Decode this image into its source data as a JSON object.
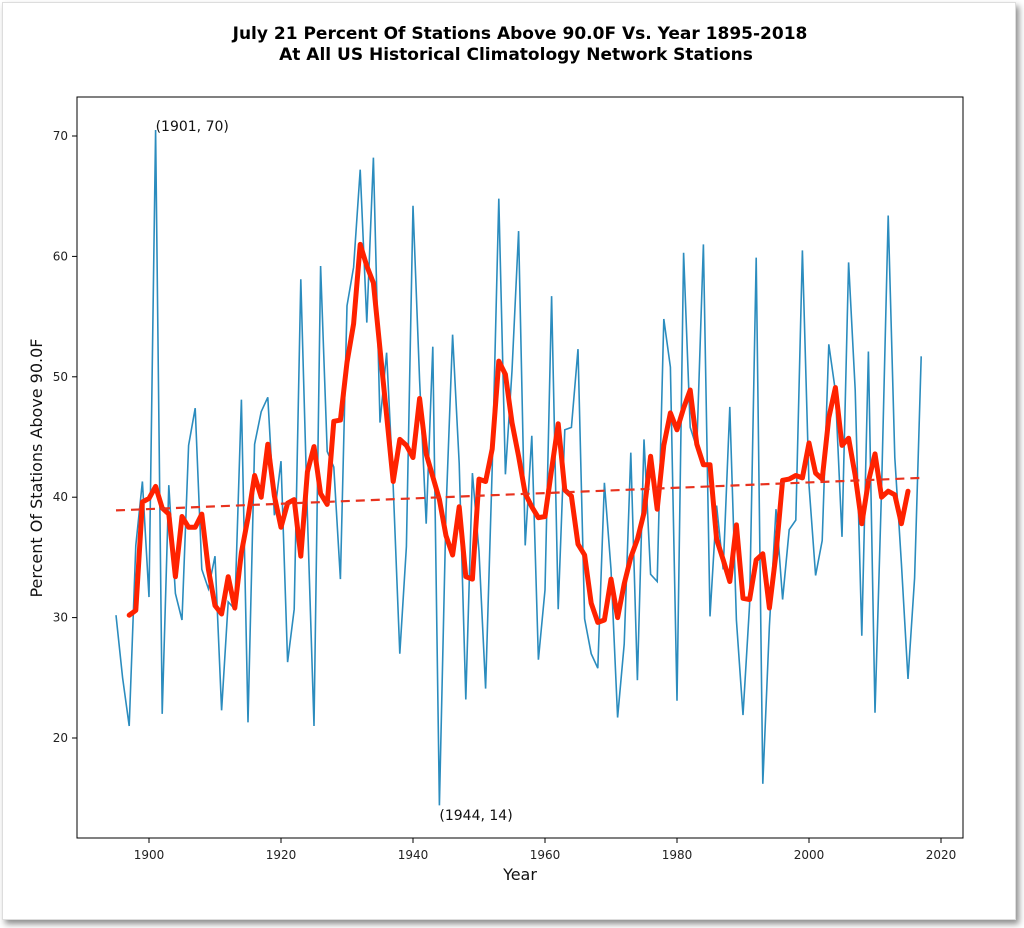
{
  "chart_data": {
    "type": "line",
    "title": "July 21 Percent Of Stations Above 90.0F Vs. Year 1895-2018",
    "subtitle": "At All US Historical Climatology Network Stations",
    "xlabel": "Year",
    "ylabel": "Percent Of Stations Above 90.0F",
    "xlim": [
      1889,
      2023
    ],
    "ylim": [
      11,
      73
    ],
    "xticks": [
      1900,
      1920,
      1940,
      1960,
      1980,
      2000,
      2020
    ],
    "yticks": [
      20,
      30,
      40,
      50,
      60,
      70
    ],
    "grid": false,
    "colors": {
      "annual": "#2b8cbe",
      "smoothed": "#ff2200",
      "trend": "#e8321e"
    },
    "annotations": [
      {
        "label": "(1901, 70)",
        "x": 1901,
        "y": 70
      },
      {
        "label": "(1944, 14)",
        "x": 1944,
        "y": 14
      }
    ],
    "series": [
      {
        "name": "annual",
        "x": [
          1895,
          1896,
          1897,
          1898,
          1899,
          1900,
          1901,
          1902,
          1903,
          1904,
          1905,
          1906,
          1907,
          1908,
          1909,
          1910,
          1911,
          1912,
          1913,
          1914,
          1915,
          1916,
          1917,
          1918,
          1919,
          1920,
          1921,
          1922,
          1923,
          1924,
          1925,
          1926,
          1927,
          1928,
          1929,
          1930,
          1931,
          1932,
          1933,
          1934,
          1935,
          1936,
          1937,
          1938,
          1939,
          1940,
          1941,
          1942,
          1943,
          1944,
          1945,
          1946,
          1947,
          1948,
          1949,
          1950,
          1951,
          1952,
          1953,
          1954,
          1955,
          1956,
          1957,
          1958,
          1959,
          1960,
          1961,
          1962,
          1963,
          1964,
          1965,
          1966,
          1967,
          1968,
          1969,
          1970,
          1971,
          1972,
          1973,
          1974,
          1975,
          1976,
          1977,
          1978,
          1979,
          1980,
          1981,
          1982,
          1983,
          1984,
          1985,
          1986,
          1987,
          1988,
          1989,
          1990,
          1991,
          1992,
          1993,
          1994,
          1995,
          1996,
          1997,
          1998,
          1999,
          2000,
          2001,
          2002,
          2003,
          2004,
          2005,
          2006,
          2007,
          2008,
          2009,
          2010,
          2011,
          2012,
          2013,
          2014,
          2015,
          2016,
          2017
        ],
        "values": [
          30.2,
          25,
          21,
          36,
          41.3,
          31.7,
          70.5,
          22,
          41,
          32,
          29.8,
          44.3,
          47.4,
          34,
          32.4,
          35.1,
          22.3,
          31.3,
          30.7,
          48.1,
          21.3,
          44.4,
          47.1,
          48.3,
          38.5,
          43,
          26.3,
          30.7,
          58.1,
          38.5,
          21,
          59.2,
          43.8,
          42.5,
          33.2,
          55.9,
          59.1,
          67.2,
          54.5,
          68.2,
          46.2,
          52,
          40.9,
          27,
          35.9,
          64.2,
          49.7,
          37.8,
          52.5,
          14.4,
          38.8,
          53.5,
          42.8,
          23.2,
          42,
          35.5,
          24.1,
          42.4,
          64.8,
          41.9,
          50.5,
          62.1,
          36,
          45.1,
          26.5,
          32.3,
          56.7,
          30.7,
          45.6,
          45.8,
          52.3,
          29.9,
          27,
          25.8,
          41.2,
          34,
          21.7,
          27.8,
          43.7,
          24.8,
          44.8,
          33.6,
          33,
          54.8,
          50.8,
          23.1,
          60.3,
          45.8,
          44.1,
          61,
          30.1,
          39.3,
          34,
          47.5,
          29.8,
          21.9,
          31.1,
          59.9,
          16.2,
          29.3,
          39,
          31.5,
          37.3,
          38.1,
          60.5,
          41,
          33.5,
          36.4,
          52.7,
          48.8,
          36.7,
          59.5,
          48.9,
          28.5,
          52.1,
          22.1,
          40.8,
          63.4,
          43.3,
          34.5,
          24.9,
          33.3,
          51.7
        ]
      },
      {
        "name": "smoothed",
        "x": [
          1897,
          1898,
          1899,
          1900,
          1901,
          1902,
          1903,
          1904,
          1905,
          1906,
          1907,
          1908,
          1909,
          1910,
          1911,
          1912,
          1913,
          1914,
          1915,
          1916,
          1917,
          1918,
          1919,
          1920,
          1921,
          1922,
          1923,
          1924,
          1925,
          1926,
          1927,
          1928,
          1929,
          1930,
          1931,
          1932,
          1933,
          1934,
          1935,
          1936,
          1937,
          1938,
          1939,
          1940,
          1941,
          1942,
          1943,
          1944,
          1945,
          1946,
          1947,
          1948,
          1949,
          1950,
          1951,
          1952,
          1953,
          1954,
          1955,
          1956,
          1957,
          1958,
          1959,
          1960,
          1961,
          1962,
          1963,
          1964,
          1965,
          1966,
          1967,
          1968,
          1969,
          1970,
          1971,
          1972,
          1973,
          1974,
          1975,
          1976,
          1977,
          1978,
          1979,
          1980,
          1981,
          1982,
          1983,
          1984,
          1985,
          1986,
          1987,
          1988,
          1989,
          1990,
          1991,
          1992,
          1993,
          1994,
          1995,
          1996,
          1997,
          1998,
          1999,
          2000,
          2001,
          2002,
          2003,
          2004,
          2005,
          2006,
          2007,
          2008,
          2009,
          2010,
          2011,
          2012,
          2013,
          2014,
          2015
        ],
        "values": [
          30.2,
          30.6,
          39.6,
          39.9,
          40.9,
          39.1,
          38.6,
          33.4,
          38.4,
          37.5,
          37.5,
          38.6,
          34,
          31,
          30.3,
          33.4,
          30.8,
          35.4,
          38.3,
          41.8,
          40,
          44.4,
          40.1,
          37.5,
          39.5,
          39.8,
          35.1,
          42.1,
          44.2,
          40.3,
          39.4,
          46.3,
          46.4,
          51.2,
          54.4,
          61,
          59.2,
          57.8,
          52.3,
          46.8,
          41.3,
          44.8,
          44.3,
          43.3,
          48.2,
          43.6,
          41.7,
          39.8,
          36.8,
          35.2,
          39.2,
          33.4,
          33.2,
          41.5,
          41.3,
          44,
          51.3,
          50.2,
          46.2,
          43.4,
          40.3,
          39.2,
          38.3,
          38.4,
          42.3,
          46.1,
          40.6,
          40.1,
          36.1,
          35.2,
          31.2,
          29.6,
          29.8,
          33.2,
          30,
          32.8,
          35,
          36.5,
          38.7,
          43.4,
          39,
          44.3,
          47,
          45.6,
          47.4,
          48.9,
          44.4,
          42.7,
          42.7,
          36.5,
          34.8,
          33,
          37.7,
          31.6,
          31.5,
          34.8,
          35.3,
          30.8,
          35.3,
          41.4,
          41.5,
          41.8,
          41.6,
          44.5,
          42,
          41.5,
          46.6,
          49.1,
          44.3,
          44.9,
          41.8,
          37.8,
          41.3,
          43.6,
          40,
          40.5,
          40.2,
          37.8,
          40.5
        ]
      },
      {
        "name": "trend",
        "x": [
          1895,
          2017
        ],
        "values": [
          38.9,
          41.6
        ]
      }
    ]
  }
}
